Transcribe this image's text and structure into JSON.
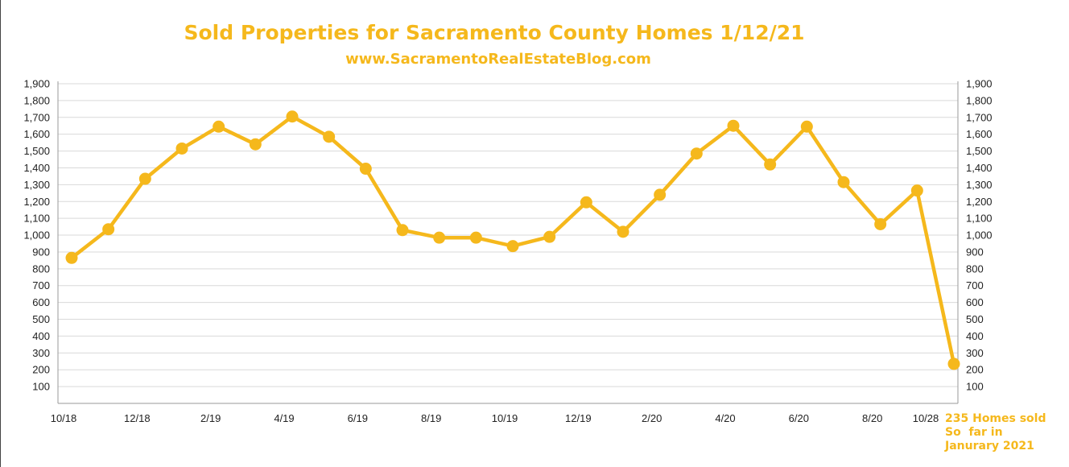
{
  "chart_data": {
    "type": "line",
    "title": "Sold Properties for Sacramento County Homes 1/12/21",
    "subtitle": "www.SacramentoRealEstateBlog.com",
    "color": "#f5b81c",
    "x_tick_labels": [
      "10/18",
      "12/18",
      "2/19",
      "4/19",
      "6/19",
      "8/19",
      "10/19",
      "12/19",
      "2/20",
      "4/20",
      "6/20",
      "8/20",
      "10/28"
    ],
    "y_ticks": [
      100,
      200,
      300,
      400,
      500,
      600,
      700,
      800,
      900,
      1000,
      1100,
      1200,
      1300,
      1400,
      1500,
      1600,
      1700,
      1800,
      1900
    ],
    "y_tick_labels": [
      "100",
      "200",
      "300",
      "400",
      "500",
      "600",
      "700",
      "800",
      "900",
      "1,000",
      "1,100",
      "1,200",
      "1,300",
      "1,400",
      "1,500",
      "1,600",
      "1,700",
      "1,800",
      "1,900"
    ],
    "ylim": [
      0,
      1900
    ],
    "grid": true,
    "series": [
      {
        "x": [
          "10/18",
          "11/18",
          "12/18",
          "1/19",
          "2/19",
          "3/19",
          "4/19",
          "5/19",
          "6/19",
          "7/19",
          "8/19",
          "9/19",
          "10/19",
          "11/19",
          "12/19",
          "1/20",
          "2/20",
          "3/20",
          "4/20",
          "5/20",
          "6/20",
          "7/20",
          "8/20",
          "9/20",
          "1/21"
        ],
        "values": [
          865,
          1035,
          1335,
          1515,
          1645,
          1540,
          1705,
          1585,
          1395,
          1030,
          985,
          985,
          935,
          990,
          1195,
          1020,
          1240,
          1485,
          1650,
          1420,
          1645,
          1315,
          1065,
          1265,
          235
        ]
      }
    ],
    "annotation": [
      "235 Homes sold",
      "So  far in",
      "Janurary 2021"
    ]
  }
}
